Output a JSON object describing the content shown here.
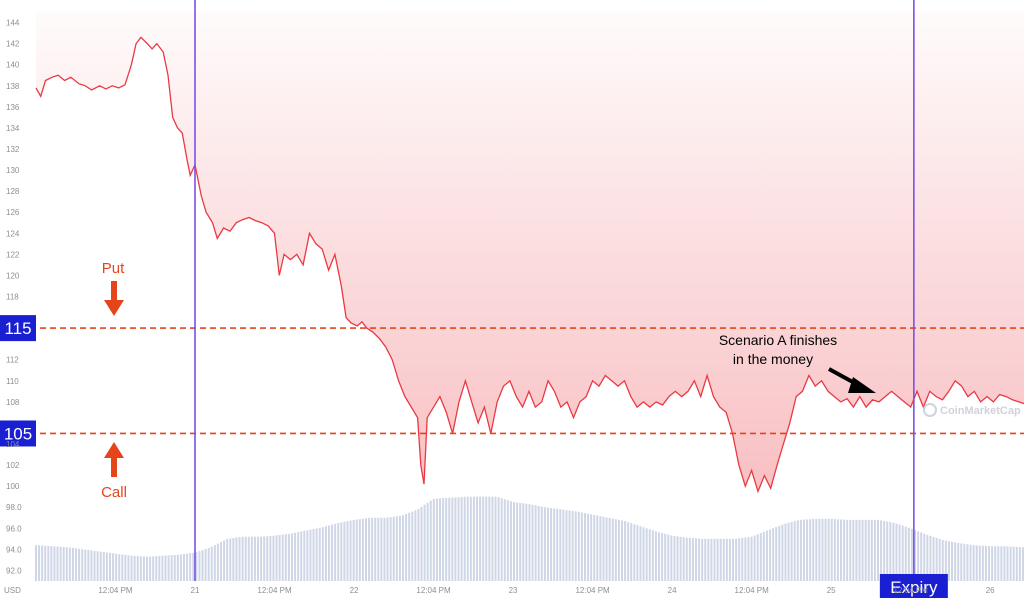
{
  "chart_data": {
    "type": "line",
    "title": "",
    "currency_label": "USD",
    "ylim": [
      91,
      145
    ],
    "y_ticks": [
      144,
      142,
      140,
      138,
      136,
      134,
      132,
      130,
      128,
      126,
      124,
      122,
      120,
      118,
      116,
      114,
      112,
      110,
      108,
      106,
      104,
      102,
      100,
      98.0,
      96.0,
      94.0,
      92.0
    ],
    "y_tick_labels": [
      "144",
      "142",
      "140",
      "138",
      "136",
      "134",
      "132",
      "130",
      "128",
      "126",
      "124",
      "122",
      "120",
      "118",
      "",
      "",
      "112",
      "110",
      "108",
      "",
      "104",
      "102",
      "100",
      "98.0",
      "96.0",
      "94.0",
      "92.0"
    ],
    "x_ticks": [
      {
        "t": 0.5,
        "label": "12:04 PM"
      },
      {
        "t": 1.0,
        "label": "21"
      },
      {
        "t": 1.5,
        "label": "12:04 PM"
      },
      {
        "t": 2.0,
        "label": "22"
      },
      {
        "t": 2.5,
        "label": "12:04 PM"
      },
      {
        "t": 3.0,
        "label": "23"
      },
      {
        "t": 3.5,
        "label": "12:04 PM"
      },
      {
        "t": 4.0,
        "label": "24"
      },
      {
        "t": 4.5,
        "label": "12:04 PM"
      },
      {
        "t": 5.0,
        "label": "25"
      },
      {
        "t": 5.5,
        "label": "12:04 PM"
      },
      {
        "t": 6.0,
        "label": "26"
      }
    ],
    "xlim": [
      -0.05,
      6.2
    ],
    "price_series": [
      [
        0.0,
        137.8
      ],
      [
        0.03,
        137.0
      ],
      [
        0.06,
        138.5
      ],
      [
        0.1,
        138.8
      ],
      [
        0.14,
        139.0
      ],
      [
        0.18,
        138.5
      ],
      [
        0.22,
        138.8
      ],
      [
        0.27,
        138.2
      ],
      [
        0.31,
        138.0
      ],
      [
        0.35,
        137.6
      ],
      [
        0.4,
        138.0
      ],
      [
        0.44,
        137.7
      ],
      [
        0.48,
        138.0
      ],
      [
        0.52,
        137.8
      ],
      [
        0.56,
        138.1
      ],
      [
        0.6,
        140.0
      ],
      [
        0.63,
        142.0
      ],
      [
        0.66,
        142.6
      ],
      [
        0.7,
        142.0
      ],
      [
        0.73,
        141.5
      ],
      [
        0.76,
        142.0
      ],
      [
        0.8,
        141.2
      ],
      [
        0.83,
        139.0
      ],
      [
        0.86,
        135.0
      ],
      [
        0.89,
        134.0
      ],
      [
        0.92,
        133.5
      ],
      [
        0.95,
        131.0
      ],
      [
        0.97,
        129.5
      ],
      [
        1.0,
        130.5
      ],
      [
        1.04,
        127.5
      ],
      [
        1.07,
        126.0
      ],
      [
        1.11,
        125.0
      ],
      [
        1.14,
        123.5
      ],
      [
        1.18,
        124.5
      ],
      [
        1.22,
        124.2
      ],
      [
        1.26,
        125.0
      ],
      [
        1.3,
        125.3
      ],
      [
        1.34,
        125.5
      ],
      [
        1.38,
        125.2
      ],
      [
        1.42,
        125.0
      ],
      [
        1.46,
        124.7
      ],
      [
        1.5,
        124.0
      ],
      [
        1.53,
        120.0
      ],
      [
        1.56,
        122.0
      ],
      [
        1.6,
        121.5
      ],
      [
        1.64,
        122.0
      ],
      [
        1.68,
        121.0
      ],
      [
        1.72,
        124.0
      ],
      [
        1.76,
        123.0
      ],
      [
        1.8,
        122.5
      ],
      [
        1.84,
        120.5
      ],
      [
        1.88,
        122.0
      ],
      [
        1.92,
        119.0
      ],
      [
        1.95,
        116.0
      ],
      [
        1.98,
        115.5
      ],
      [
        2.02,
        115.2
      ],
      [
        2.05,
        115.6
      ],
      [
        2.08,
        115.0
      ],
      [
        2.12,
        114.6
      ],
      [
        2.16,
        114.0
      ],
      [
        2.2,
        113.2
      ],
      [
        2.24,
        112.0
      ],
      [
        2.28,
        110.0
      ],
      [
        2.32,
        108.5
      ],
      [
        2.36,
        107.5
      ],
      [
        2.4,
        106.5
      ],
      [
        2.42,
        102.0
      ],
      [
        2.44,
        100.2
      ],
      [
        2.46,
        106.5
      ],
      [
        2.5,
        107.5
      ],
      [
        2.54,
        108.5
      ],
      [
        2.58,
        107.0
      ],
      [
        2.62,
        105.0
      ],
      [
        2.66,
        108.0
      ],
      [
        2.7,
        110.0
      ],
      [
        2.74,
        108.0
      ],
      [
        2.78,
        106.0
      ],
      [
        2.82,
        107.5
      ],
      [
        2.86,
        105.0
      ],
      [
        2.9,
        108.0
      ],
      [
        2.94,
        109.5
      ],
      [
        2.98,
        110.0
      ],
      [
        3.02,
        108.5
      ],
      [
        3.06,
        107.5
      ],
      [
        3.1,
        109.0
      ],
      [
        3.14,
        107.5
      ],
      [
        3.18,
        108.0
      ],
      [
        3.22,
        110.0
      ],
      [
        3.26,
        109.0
      ],
      [
        3.3,
        107.5
      ],
      [
        3.34,
        108.0
      ],
      [
        3.38,
        106.5
      ],
      [
        3.42,
        108.0
      ],
      [
        3.46,
        108.5
      ],
      [
        3.5,
        110.0
      ],
      [
        3.54,
        109.5
      ],
      [
        3.58,
        110.5
      ],
      [
        3.62,
        110.0
      ],
      [
        3.66,
        109.5
      ],
      [
        3.7,
        110.0
      ],
      [
        3.74,
        108.5
      ],
      [
        3.78,
        107.5
      ],
      [
        3.82,
        108.0
      ],
      [
        3.86,
        107.5
      ],
      [
        3.9,
        108.0
      ],
      [
        3.94,
        107.7
      ],
      [
        3.98,
        108.5
      ],
      [
        4.02,
        109.0
      ],
      [
        4.06,
        108.5
      ],
      [
        4.1,
        109.0
      ],
      [
        4.14,
        110.0
      ],
      [
        4.18,
        108.5
      ],
      [
        4.22,
        110.5
      ],
      [
        4.26,
        108.5
      ],
      [
        4.3,
        107.5
      ],
      [
        4.34,
        107.0
      ],
      [
        4.38,
        105.0
      ],
      [
        4.42,
        102.0
      ],
      [
        4.46,
        100.0
      ],
      [
        4.5,
        101.5
      ],
      [
        4.54,
        99.5
      ],
      [
        4.58,
        101.0
      ],
      [
        4.62,
        99.8
      ],
      [
        4.66,
        102.0
      ],
      [
        4.7,
        104.0
      ],
      [
        4.74,
        106.0
      ],
      [
        4.78,
        108.5
      ],
      [
        4.82,
        109.0
      ],
      [
        4.86,
        110.5
      ],
      [
        4.9,
        109.5
      ],
      [
        4.94,
        110.0
      ],
      [
        4.98,
        109.0
      ],
      [
        5.02,
        108.5
      ],
      [
        5.06,
        108.0
      ],
      [
        5.1,
        108.3
      ],
      [
        5.14,
        107.5
      ],
      [
        5.18,
        108.5
      ],
      [
        5.22,
        107.5
      ],
      [
        5.26,
        108.2
      ],
      [
        5.3,
        108.0
      ],
      [
        5.34,
        108.5
      ],
      [
        5.38,
        109.0
      ],
      [
        5.42,
        108.5
      ],
      [
        5.46,
        108.0
      ],
      [
        5.5,
        107.5
      ],
      [
        5.54,
        109.0
      ],
      [
        5.58,
        107.5
      ],
      [
        5.62,
        109.0
      ],
      [
        5.66,
        108.5
      ],
      [
        5.7,
        108.2
      ],
      [
        5.74,
        109.0
      ],
      [
        5.78,
        110.0
      ],
      [
        5.82,
        109.5
      ],
      [
        5.86,
        108.5
      ],
      [
        5.9,
        109.0
      ],
      [
        5.94,
        108.0
      ],
      [
        5.98,
        108.5
      ],
      [
        6.02,
        108.0
      ],
      [
        6.06,
        108.7
      ],
      [
        6.1,
        108.5
      ],
      [
        6.14,
        108.2
      ],
      [
        6.18,
        108.0
      ],
      [
        6.22,
        107.8
      ],
      [
        6.26,
        108.5
      ],
      [
        6.3,
        109.3
      ],
      [
        6.34,
        110.0
      ],
      [
        6.38,
        109.0
      ],
      [
        6.42,
        109.5
      ],
      [
        6.46,
        109.3
      ]
    ],
    "volume_series": [
      [
        0.0,
        94.4
      ],
      [
        0.1,
        94.3
      ],
      [
        0.2,
        94.2
      ],
      [
        0.3,
        94.0
      ],
      [
        0.4,
        93.8
      ],
      [
        0.5,
        93.6
      ],
      [
        0.6,
        93.4
      ],
      [
        0.7,
        93.3
      ],
      [
        0.8,
        93.4
      ],
      [
        0.9,
        93.5
      ],
      [
        1.0,
        93.7
      ],
      [
        1.1,
        94.2
      ],
      [
        1.2,
        95.0
      ],
      [
        1.3,
        95.2
      ],
      [
        1.4,
        95.2
      ],
      [
        1.5,
        95.3
      ],
      [
        1.6,
        95.5
      ],
      [
        1.7,
        95.8
      ],
      [
        1.8,
        96.1
      ],
      [
        1.9,
        96.5
      ],
      [
        2.0,
        96.8
      ],
      [
        2.1,
        97.0
      ],
      [
        2.2,
        97.0
      ],
      [
        2.3,
        97.2
      ],
      [
        2.4,
        97.8
      ],
      [
        2.5,
        98.8
      ],
      [
        2.6,
        98.9
      ],
      [
        2.7,
        99.0
      ],
      [
        2.8,
        99.0
      ],
      [
        2.9,
        99.0
      ],
      [
        3.0,
        98.5
      ],
      [
        3.1,
        98.3
      ],
      [
        3.2,
        98.0
      ],
      [
        3.3,
        97.8
      ],
      [
        3.4,
        97.6
      ],
      [
        3.5,
        97.3
      ],
      [
        3.6,
        97.0
      ],
      [
        3.7,
        96.7
      ],
      [
        3.8,
        96.2
      ],
      [
        3.9,
        95.7
      ],
      [
        4.0,
        95.3
      ],
      [
        4.1,
        95.1
      ],
      [
        4.2,
        95.0
      ],
      [
        4.3,
        95.0
      ],
      [
        4.4,
        95.0
      ],
      [
        4.5,
        95.2
      ],
      [
        4.6,
        95.8
      ],
      [
        4.7,
        96.4
      ],
      [
        4.8,
        96.8
      ],
      [
        4.9,
        96.9
      ],
      [
        5.0,
        96.9
      ],
      [
        5.1,
        96.8
      ],
      [
        5.2,
        96.8
      ],
      [
        5.3,
        96.8
      ],
      [
        5.4,
        96.5
      ],
      [
        5.5,
        96.0
      ],
      [
        5.6,
        95.4
      ],
      [
        5.7,
        94.9
      ],
      [
        5.8,
        94.6
      ],
      [
        5.9,
        94.4
      ],
      [
        6.0,
        94.3
      ],
      [
        6.1,
        94.3
      ],
      [
        6.2,
        94.2
      ],
      [
        6.3,
        94.2
      ],
      [
        6.4,
        94.1
      ]
    ],
    "reference_lines": [
      {
        "value": 115,
        "label": "115"
      },
      {
        "value": 105,
        "label": "105"
      }
    ],
    "vertical_markers": [
      {
        "t": 1.0,
        "label": ""
      },
      {
        "t": 5.52,
        "label": "Expiry"
      }
    ],
    "annotations": {
      "put": "Put",
      "call": "Call",
      "scenario_line1": "Scenario A finishes",
      "scenario_line2": "in the money"
    },
    "watermark": "CoinMarketCap",
    "colors": {
      "price_line": "#ea3943",
      "fill_top": "#ea3943",
      "reference_line": "#e6451b",
      "vertical_line": "#7b50e8",
      "label_box": "#1a1fd1",
      "volume_bar": "#cfd6e6",
      "arrow_orange": "#e6451b"
    },
    "grid": false
  }
}
